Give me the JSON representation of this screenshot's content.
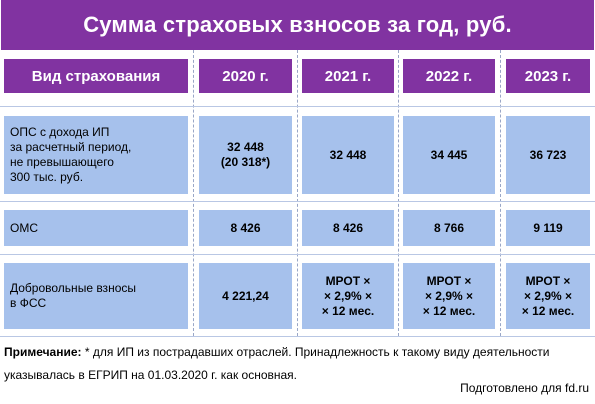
{
  "title": "Сумма страховых взносов за год, руб.",
  "header": {
    "col0": "Вид страхования",
    "years": [
      "2020 г.",
      "2021 г.",
      "2022 г.",
      "2023 г."
    ]
  },
  "rows": [
    {
      "label": "ОПС с дохода ИП\nза расчетный период,\nне превышающего\n300 тыс. руб.",
      "values": [
        "32 448\n(20 318*)",
        "32 448",
        "34 445",
        "36 723"
      ]
    },
    {
      "label": "ОМС",
      "values": [
        "8 426",
        "8 426",
        "8 766",
        "9 119"
      ]
    },
    {
      "label": "Добровольные взносы\nв ФСС",
      "values": [
        "4 221,24",
        "МРОТ ×\n× 2,9% ×\n× 12 мес.",
        "МРОТ ×\n× 2,9% ×\n× 12 мес.",
        "МРОТ ×\n× 2,9% ×\n× 12 мес."
      ]
    }
  ],
  "note": {
    "label": "Примечание:",
    "text": " * для ИП из пострадавших отраслей. Принадлежность к такому виду деятельности указывалась в ЕГРИП на 01.03.2020 г. как основная."
  },
  "credit": "Подготовлено для fd.ru"
}
